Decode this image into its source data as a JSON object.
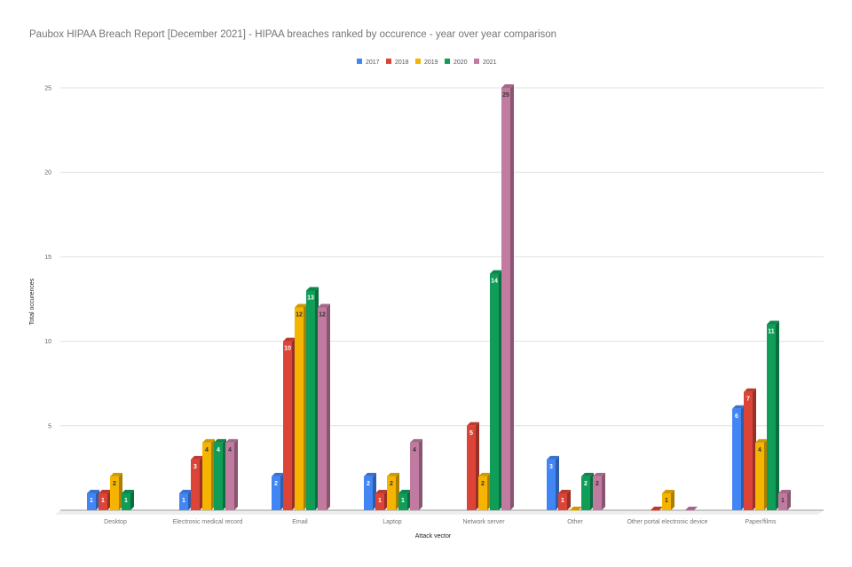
{
  "chart_data": {
    "type": "bar",
    "title": "Paubox HIPAA Breach Report [December 2021] - HIPAA breaches ranked by occurence - year over year comparison",
    "xlabel": "Attack vector",
    "ylabel": "Total occurences",
    "ylim": [
      0,
      25
    ],
    "yticks": [
      5,
      10,
      15,
      20,
      25
    ],
    "grid": true,
    "legend_position": "top",
    "style": "3d-column",
    "categories": [
      "Desktop",
      "Electronic medical record",
      "Email",
      "Laptop",
      "Network server",
      "Other",
      "Other portal electronic device",
      "Paper/films"
    ],
    "series": [
      {
        "name": "2017",
        "color": "#4285f4",
        "values": [
          1,
          1,
          2,
          2,
          null,
          3,
          null,
          6
        ]
      },
      {
        "name": "2018",
        "color": "#db4437",
        "values": [
          1,
          3,
          10,
          1,
          5,
          1,
          0,
          7
        ]
      },
      {
        "name": "2019",
        "color": "#f4b400",
        "values": [
          2,
          4,
          12,
          2,
          2,
          0,
          1,
          4
        ]
      },
      {
        "name": "2020",
        "color": "#0f9d58",
        "values": [
          1,
          4,
          13,
          1,
          14,
          2,
          null,
          11
        ]
      },
      {
        "name": "2021",
        "color": "#c27ba0",
        "values": [
          null,
          4,
          12,
          4,
          25,
          2,
          0,
          1
        ]
      }
    ]
  }
}
